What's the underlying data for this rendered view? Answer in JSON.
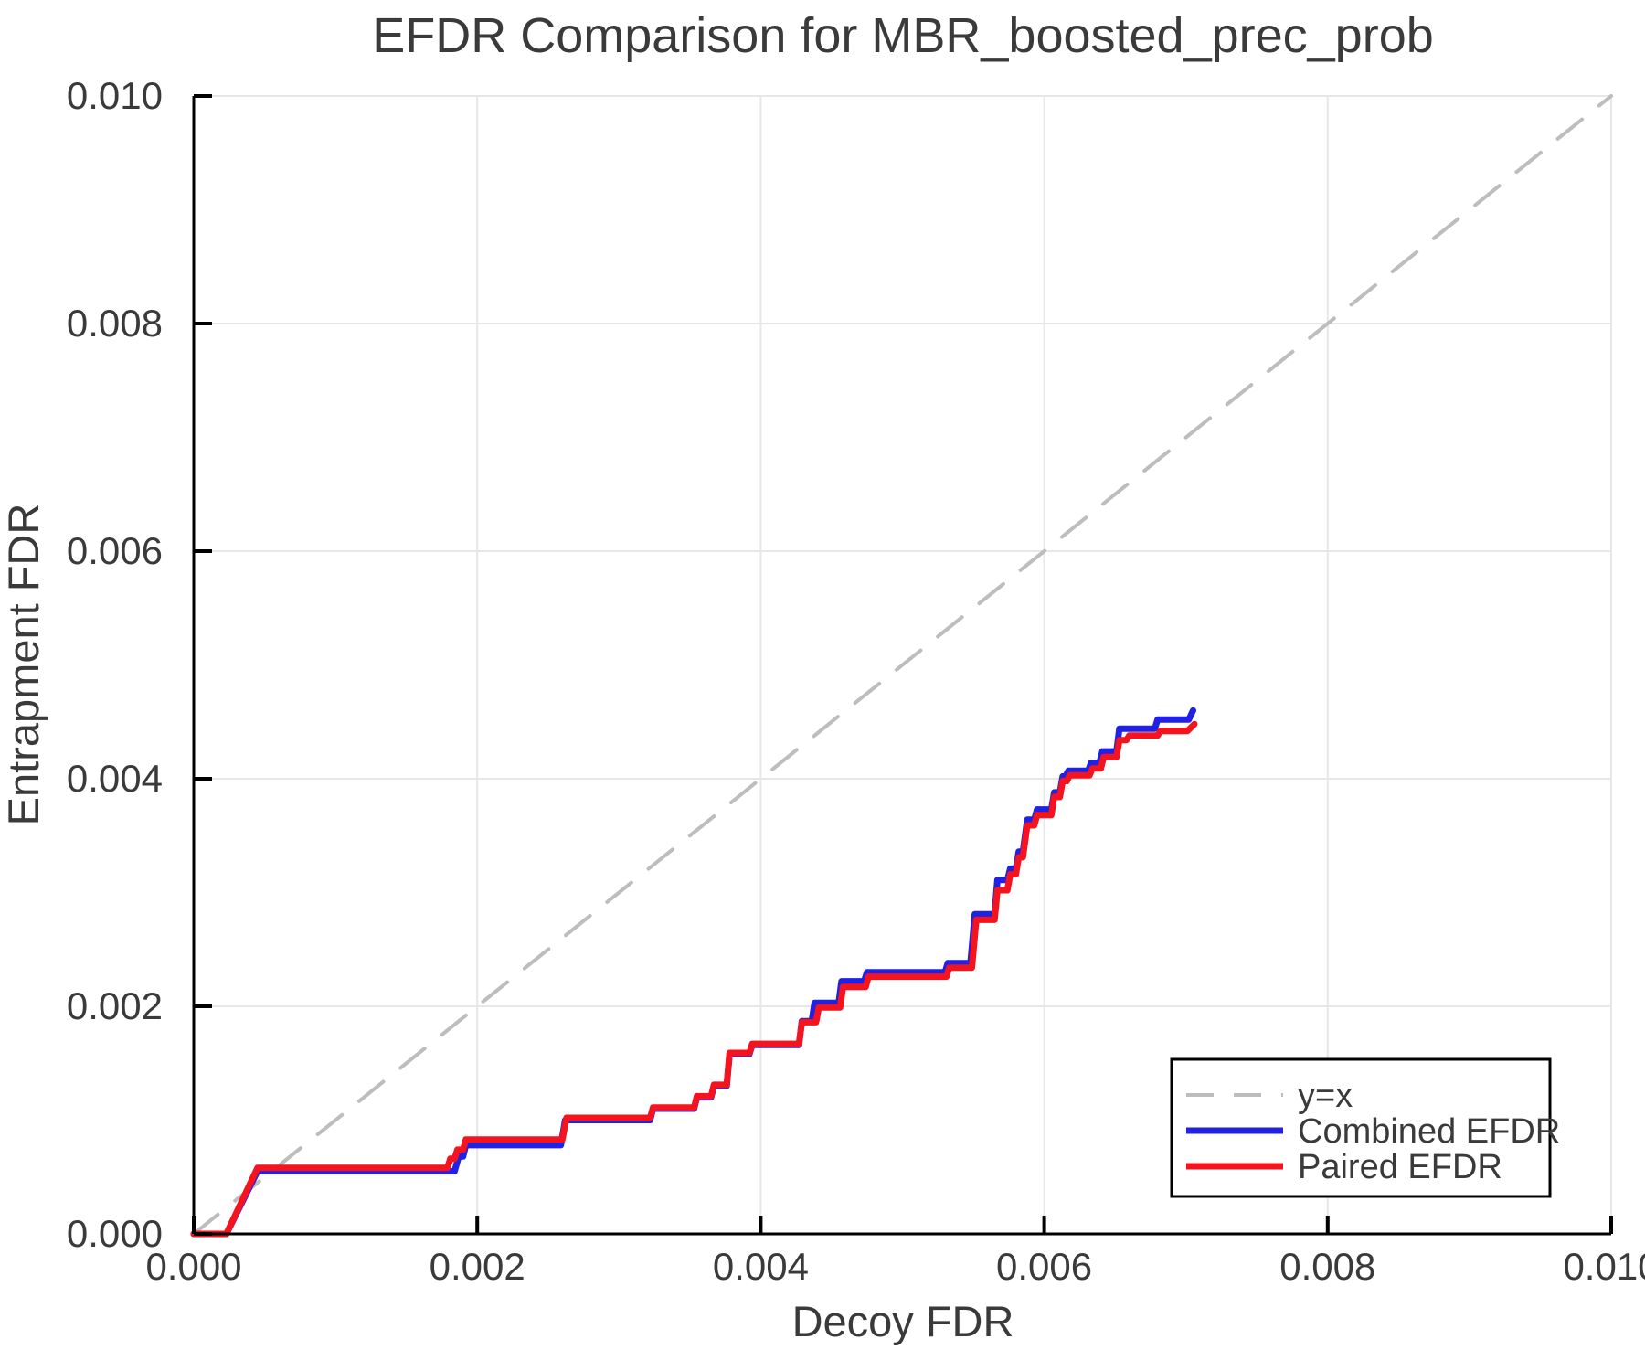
{
  "chart_data": {
    "type": "line",
    "title": "EFDR Comparison for MBR_boosted_prec_prob",
    "xlabel": "Decoy FDR",
    "ylabel": "Entrapment FDR",
    "xlim": [
      0.0,
      0.01
    ],
    "ylim": [
      0.0,
      0.01
    ],
    "grid": true,
    "legend_position": "lower-right",
    "xticks": {
      "values": [
        0.0,
        0.002,
        0.004,
        0.006,
        0.008,
        0.01
      ],
      "labels": [
        "0.000",
        "0.002",
        "0.004",
        "0.006",
        "0.008",
        "0.010"
      ]
    },
    "yticks": {
      "values": [
        0.0,
        0.002,
        0.004,
        0.006,
        0.008,
        0.01
      ],
      "labels": [
        "0.000",
        "0.002",
        "0.004",
        "0.006",
        "0.008",
        "0.010"
      ]
    },
    "series": [
      {
        "name": "y=x",
        "style": "dashed",
        "color": "#bdbdbd",
        "points": [
          [
            0.0,
            0.0
          ],
          [
            0.01,
            0.01
          ]
        ]
      },
      {
        "name": "Combined EFDR",
        "style": "solid",
        "color": "#2121e3",
        "points": [
          [
            0.0,
            0.0
          ],
          [
            0.00023,
            0.0
          ],
          [
            0.00045,
            0.00055
          ],
          [
            0.00184,
            0.00055
          ],
          [
            0.00187,
            0.00068
          ],
          [
            0.0019,
            0.00068
          ],
          [
            0.00192,
            0.00078
          ],
          [
            0.00259,
            0.00078
          ],
          [
            0.00262,
            0.001
          ],
          [
            0.00322,
            0.001
          ],
          [
            0.00324,
            0.0011
          ],
          [
            0.00353,
            0.0011
          ],
          [
            0.00355,
            0.0012
          ],
          [
            0.00365,
            0.0012
          ],
          [
            0.00367,
            0.0013
          ],
          [
            0.00376,
            0.0013
          ],
          [
            0.00378,
            0.00158
          ],
          [
            0.00392,
            0.00158
          ],
          [
            0.00394,
            0.00166
          ],
          [
            0.00427,
            0.00166
          ],
          [
            0.00429,
            0.00187
          ],
          [
            0.00436,
            0.00187
          ],
          [
            0.00438,
            0.00203
          ],
          [
            0.00455,
            0.00203
          ],
          [
            0.00457,
            0.00222
          ],
          [
            0.00473,
            0.00222
          ],
          [
            0.00475,
            0.0023
          ],
          [
            0.0053,
            0.0023
          ],
          [
            0.00532,
            0.00238
          ],
          [
            0.00548,
            0.00238
          ],
          [
            0.00551,
            0.00281
          ],
          [
            0.00565,
            0.00281
          ],
          [
            0.00567,
            0.00311
          ],
          [
            0.00574,
            0.00311
          ],
          [
            0.00576,
            0.00321
          ],
          [
            0.0058,
            0.00321
          ],
          [
            0.00582,
            0.00336
          ],
          [
            0.00585,
            0.00336
          ],
          [
            0.00588,
            0.00364
          ],
          [
            0.00593,
            0.00364
          ],
          [
            0.00595,
            0.00373
          ],
          [
            0.00605,
            0.00373
          ],
          [
            0.00607,
            0.00388
          ],
          [
            0.00611,
            0.00388
          ],
          [
            0.00613,
            0.00402
          ],
          [
            0.00615,
            0.00402
          ],
          [
            0.00617,
            0.00407
          ],
          [
            0.00631,
            0.00407
          ],
          [
            0.00633,
            0.00414
          ],
          [
            0.00639,
            0.00414
          ],
          [
            0.00641,
            0.00424
          ],
          [
            0.00651,
            0.00424
          ],
          [
            0.00653,
            0.00444
          ],
          [
            0.00678,
            0.00444
          ],
          [
            0.0068,
            0.00452
          ],
          [
            0.00702,
            0.00452
          ],
          [
            0.00705,
            0.0046
          ]
        ]
      },
      {
        "name": "Paired EFDR",
        "style": "solid",
        "color": "#f5141e",
        "points": [
          [
            0.0,
            0.0
          ],
          [
            0.00023,
            0.0
          ],
          [
            0.00045,
            0.00058
          ],
          [
            0.00179,
            0.00058
          ],
          [
            0.00181,
            0.00066
          ],
          [
            0.00184,
            0.00066
          ],
          [
            0.00186,
            0.00074
          ],
          [
            0.0019,
            0.00074
          ],
          [
            0.00192,
            0.00083
          ],
          [
            0.0026,
            0.00083
          ],
          [
            0.00263,
            0.00102
          ],
          [
            0.00322,
            0.00102
          ],
          [
            0.00324,
            0.00111
          ],
          [
            0.00353,
            0.00111
          ],
          [
            0.00355,
            0.00121
          ],
          [
            0.00365,
            0.00121
          ],
          [
            0.00367,
            0.00131
          ],
          [
            0.00376,
            0.00131
          ],
          [
            0.00378,
            0.00159
          ],
          [
            0.00392,
            0.00159
          ],
          [
            0.00394,
            0.00167
          ],
          [
            0.00427,
            0.00167
          ],
          [
            0.00429,
            0.00186
          ],
          [
            0.00439,
            0.00186
          ],
          [
            0.00441,
            0.00199
          ],
          [
            0.00456,
            0.00199
          ],
          [
            0.00458,
            0.00217
          ],
          [
            0.00474,
            0.00217
          ],
          [
            0.00476,
            0.00226
          ],
          [
            0.00531,
            0.00226
          ],
          [
            0.00533,
            0.00234
          ],
          [
            0.00549,
            0.00234
          ],
          [
            0.00552,
            0.00276
          ],
          [
            0.00565,
            0.00276
          ],
          [
            0.00567,
            0.00302
          ],
          [
            0.00574,
            0.00302
          ],
          [
            0.00576,
            0.00316
          ],
          [
            0.0058,
            0.00316
          ],
          [
            0.00582,
            0.00331
          ],
          [
            0.00585,
            0.00331
          ],
          [
            0.00588,
            0.00359
          ],
          [
            0.00593,
            0.00359
          ],
          [
            0.00595,
            0.00368
          ],
          [
            0.00605,
            0.00368
          ],
          [
            0.00607,
            0.00384
          ],
          [
            0.00611,
            0.00384
          ],
          [
            0.00613,
            0.00398
          ],
          [
            0.00616,
            0.00398
          ],
          [
            0.00618,
            0.00403
          ],
          [
            0.00632,
            0.00403
          ],
          [
            0.00634,
            0.00409
          ],
          [
            0.0064,
            0.00409
          ],
          [
            0.00642,
            0.00419
          ],
          [
            0.00651,
            0.00419
          ],
          [
            0.00653,
            0.00434
          ],
          [
            0.00658,
            0.00434
          ],
          [
            0.0066,
            0.00438
          ],
          [
            0.0068,
            0.00438
          ],
          [
            0.00682,
            0.00442
          ],
          [
            0.00701,
            0.00442
          ],
          [
            0.00706,
            0.00448
          ]
        ]
      }
    ]
  }
}
